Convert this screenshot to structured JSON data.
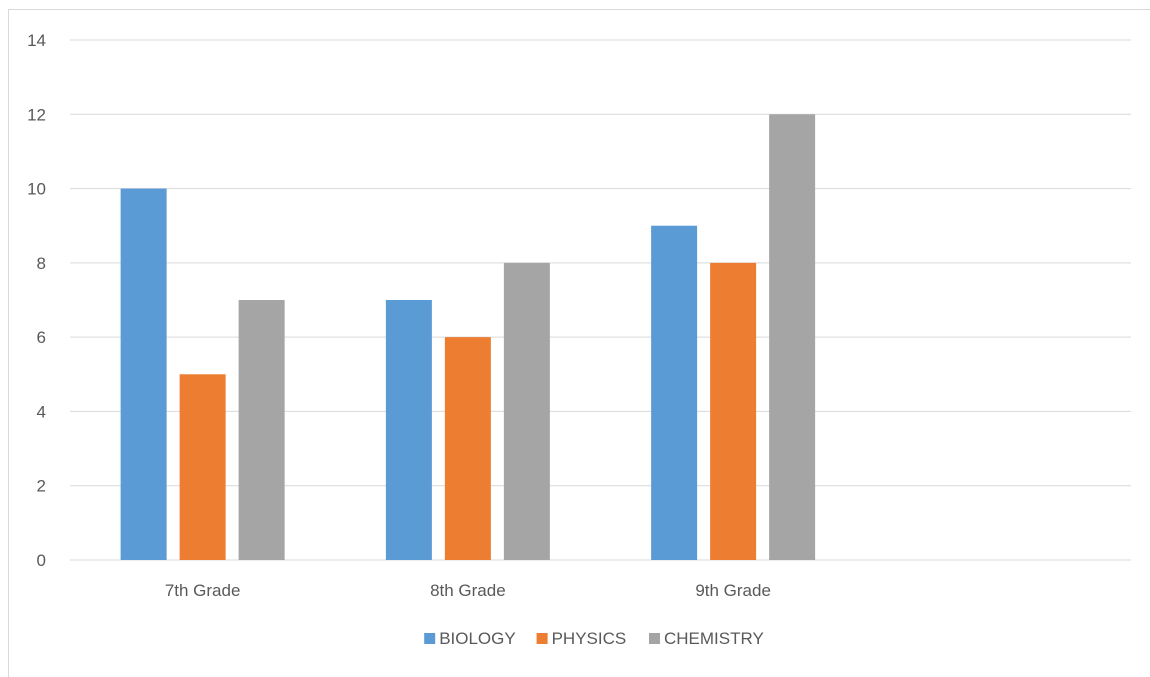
{
  "chart_data": {
    "type": "bar",
    "title": "",
    "xlabel": "",
    "ylabel": "",
    "categories": [
      "7th Grade",
      "8th Grade",
      "9th Grade",
      ""
    ],
    "series": [
      {
        "name": "BIOLOGY",
        "color": "#5b9bd5",
        "values": [
          10,
          7,
          9,
          null
        ]
      },
      {
        "name": "PHYSICS",
        "color": "#ed7d31",
        "values": [
          5,
          6,
          8,
          null
        ]
      },
      {
        "name": "CHEMISTRY",
        "color": "#a5a5a5",
        "values": [
          7,
          8,
          12,
          null
        ]
      }
    ],
    "ylim": [
      0,
      14
    ],
    "yticks": [
      "0",
      "2",
      "4",
      "6",
      "8",
      "10",
      "12",
      "14"
    ],
    "grid": true,
    "legend_position": "bottom"
  }
}
